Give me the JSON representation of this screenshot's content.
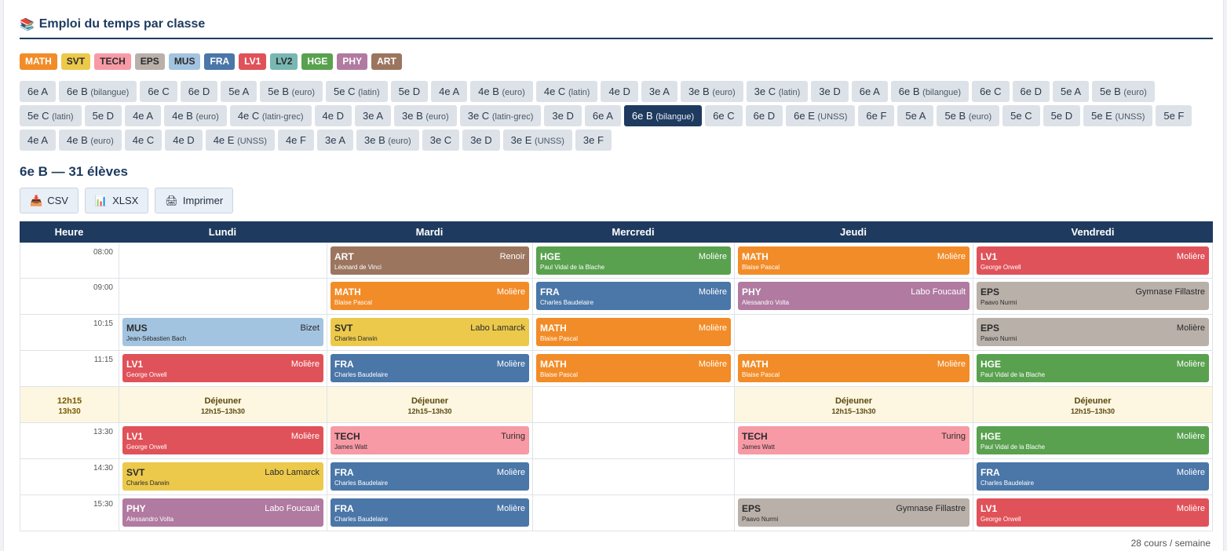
{
  "header": {
    "icon": "📚",
    "title": "Emploi du temps par classe"
  },
  "subjects": [
    {
      "code": "MATH",
      "color": "#f28c28",
      "text": "#fff"
    },
    {
      "code": "SVT",
      "color": "#ecc94b",
      "text": "#2b2b2b"
    },
    {
      "code": "TECH",
      "color": "#f79aa6",
      "text": "#2b2b2b"
    },
    {
      "code": "EPS",
      "color": "#b9b0aa",
      "text": "#2b2b2b"
    },
    {
      "code": "MUS",
      "color": "#a3c4e0",
      "text": "#2b2b2b"
    },
    {
      "code": "FRA",
      "color": "#4a76a8",
      "text": "#fff"
    },
    {
      "code": "LV1",
      "color": "#e05259",
      "text": "#fff"
    },
    {
      "code": "LV2",
      "color": "#79b7b2",
      "text": "#2b2b2b"
    },
    {
      "code": "HGE",
      "color": "#59a14f",
      "text": "#fff"
    },
    {
      "code": "PHY",
      "color": "#b07aa1",
      "text": "#fff"
    },
    {
      "code": "ART",
      "color": "#9c755f",
      "text": "#fff"
    }
  ],
  "classes": [
    {
      "name": "6e A",
      "sfx": ""
    },
    {
      "name": "6e B",
      "sfx": "(bilangue)"
    },
    {
      "name": "6e C",
      "sfx": ""
    },
    {
      "name": "6e D",
      "sfx": ""
    },
    {
      "name": "5e A",
      "sfx": ""
    },
    {
      "name": "5e B",
      "sfx": "(euro)"
    },
    {
      "name": "5e C",
      "sfx": "(latin)"
    },
    {
      "name": "5e D",
      "sfx": ""
    },
    {
      "name": "4e A",
      "sfx": ""
    },
    {
      "name": "4e B",
      "sfx": "(euro)"
    },
    {
      "name": "4e C",
      "sfx": "(latin)"
    },
    {
      "name": "4e D",
      "sfx": ""
    },
    {
      "name": "3e A",
      "sfx": ""
    },
    {
      "name": "3e B",
      "sfx": "(euro)"
    },
    {
      "name": "3e C",
      "sfx": "(latin)"
    },
    {
      "name": "3e D",
      "sfx": ""
    },
    {
      "name": "6e A",
      "sfx": ""
    },
    {
      "name": "6e B",
      "sfx": "(bilangue)"
    },
    {
      "name": "6e C",
      "sfx": ""
    },
    {
      "name": "6e D",
      "sfx": ""
    },
    {
      "name": "5e A",
      "sfx": ""
    },
    {
      "name": "5e B",
      "sfx": "(euro)"
    },
    {
      "name": "5e C",
      "sfx": "(latin)"
    },
    {
      "name": "5e D",
      "sfx": ""
    },
    {
      "name": "4e A",
      "sfx": ""
    },
    {
      "name": "4e B",
      "sfx": "(euro)"
    },
    {
      "name": "4e C",
      "sfx": "(latin-grec)"
    },
    {
      "name": "4e D",
      "sfx": ""
    },
    {
      "name": "3e A",
      "sfx": ""
    },
    {
      "name": "3e B",
      "sfx": "(euro)"
    },
    {
      "name": "3e C",
      "sfx": "(latin-grec)"
    },
    {
      "name": "3e D",
      "sfx": ""
    },
    {
      "name": "6e A",
      "sfx": ""
    },
    {
      "name": "6e B",
      "sfx": "(bilangue)",
      "active": true
    },
    {
      "name": "6e C",
      "sfx": ""
    },
    {
      "name": "6e D",
      "sfx": ""
    },
    {
      "name": "6e E",
      "sfx": "(UNSS)"
    },
    {
      "name": "6e F",
      "sfx": ""
    },
    {
      "name": "5e A",
      "sfx": ""
    },
    {
      "name": "5e B",
      "sfx": "(euro)"
    },
    {
      "name": "5e C",
      "sfx": ""
    },
    {
      "name": "5e D",
      "sfx": ""
    },
    {
      "name": "5e E",
      "sfx": "(UNSS)"
    },
    {
      "name": "5e F",
      "sfx": ""
    },
    {
      "name": "4e A",
      "sfx": ""
    },
    {
      "name": "4e B",
      "sfx": "(euro)"
    },
    {
      "name": "4e C",
      "sfx": ""
    },
    {
      "name": "4e D",
      "sfx": ""
    },
    {
      "name": "4e E",
      "sfx": "(UNSS)"
    },
    {
      "name": "4e F",
      "sfx": ""
    },
    {
      "name": "3e A",
      "sfx": ""
    },
    {
      "name": "3e B",
      "sfx": "(euro)"
    },
    {
      "name": "3e C",
      "sfx": ""
    },
    {
      "name": "3e D",
      "sfx": ""
    },
    {
      "name": "3e E",
      "sfx": "(UNSS)"
    },
    {
      "name": "3e F",
      "sfx": ""
    }
  ],
  "selected": {
    "title": "6e B — 31 élèves"
  },
  "toolbar": [
    {
      "icon": "📥",
      "icon_name": "download-icon",
      "label": "CSV"
    },
    {
      "icon": "📊",
      "icon_name": "bar-chart-icon",
      "label": "XLSX"
    },
    {
      "icon": "🖨",
      "icon_name": "printer-icon",
      "label": "Imprimer"
    }
  ],
  "table": {
    "headers": [
      "Heure",
      "Lundi",
      "Mardi",
      "Mercredi",
      "Jeudi",
      "Vendredi"
    ],
    "rows": [
      {
        "time": "08:00",
        "cells": [
          null,
          {
            "s": "ART",
            "r": "Renoir",
            "t": "Léonard de Vinci"
          },
          {
            "s": "HGE",
            "r": "Molière",
            "t": "Paul Vidal de la Blache"
          },
          {
            "s": "MATH",
            "r": "Molière",
            "t": "Blaise Pascal"
          },
          {
            "s": "LV1",
            "r": "Molière",
            "t": "George Orwell"
          }
        ]
      },
      {
        "time": "09:00",
        "cells": [
          null,
          {
            "s": "MATH",
            "r": "Molière",
            "t": "Blaise Pascal"
          },
          {
            "s": "FRA",
            "r": "Molière",
            "t": "Charles Baudelaire"
          },
          {
            "s": "PHY",
            "r": "Labo Foucault",
            "t": "Alessandro Volta"
          },
          {
            "s": "EPS",
            "r": "Gymnase Fillastre",
            "t": "Paavo Nurmi"
          }
        ]
      },
      {
        "time": "10:15",
        "cells": [
          {
            "s": "MUS",
            "r": "Bizet",
            "t": "Jean-Sébastien Bach"
          },
          {
            "s": "SVT",
            "r": "Labo Lamarck",
            "t": "Charles Darwin"
          },
          {
            "s": "MATH",
            "r": "Molière",
            "t": "Blaise Pascal"
          },
          null,
          {
            "s": "EPS",
            "r": "Molière",
            "t": "Paavo Nurmi"
          }
        ]
      },
      {
        "time": "11:15",
        "cells": [
          {
            "s": "LV1",
            "r": "Molière",
            "t": "George Orwell"
          },
          {
            "s": "FRA",
            "r": "Molière",
            "t": "Charles Baudelaire"
          },
          {
            "s": "MATH",
            "r": "Molière",
            "t": "Blaise Pascal"
          },
          {
            "s": "MATH",
            "r": "Molière",
            "t": "Blaise Pascal"
          },
          {
            "s": "HGE",
            "r": "Molière",
            "t": "Paul Vidal de la Blache"
          }
        ]
      },
      {
        "lunch": true,
        "time": "12h15",
        "time2": "13h30",
        "cells": [
          {
            "a": "Déjeuner",
            "b": "12h15–13h30"
          },
          {
            "a": "Déjeuner",
            "b": "12h15–13h30"
          },
          null,
          {
            "a": "Déjeuner",
            "b": "12h15–13h30"
          },
          {
            "a": "Déjeuner",
            "b": "12h15–13h30"
          }
        ]
      },
      {
        "time": "13:30",
        "cells": [
          {
            "s": "LV1",
            "r": "Molière",
            "t": "George Orwell"
          },
          {
            "s": "TECH",
            "r": "Turing",
            "t": "James Watt"
          },
          null,
          {
            "s": "TECH",
            "r": "Turing",
            "t": "James Watt"
          },
          {
            "s": "HGE",
            "r": "Molière",
            "t": "Paul Vidal de la Blache"
          }
        ]
      },
      {
        "time": "14:30",
        "cells": [
          {
            "s": "SVT",
            "r": "Labo Lamarck",
            "t": "Charles Darwin"
          },
          {
            "s": "FRA",
            "r": "Molière",
            "t": "Charles Baudelaire"
          },
          null,
          null,
          {
            "s": "FRA",
            "r": "Molière",
            "t": "Charles Baudelaire"
          }
        ]
      },
      {
        "time": "15:30",
        "cells": [
          {
            "s": "PHY",
            "r": "Labo Foucault",
            "t": "Alessandro Volta"
          },
          {
            "s": "FRA",
            "r": "Molière",
            "t": "Charles Baudelaire"
          },
          null,
          {
            "s": "EPS",
            "r": "Gymnase Fillastre",
            "t": "Paavo Nurmi"
          },
          {
            "s": "LV1",
            "r": "Molière",
            "t": "George Orwell"
          }
        ]
      }
    ]
  },
  "footer": {
    "summary": "28 cours / semaine"
  }
}
